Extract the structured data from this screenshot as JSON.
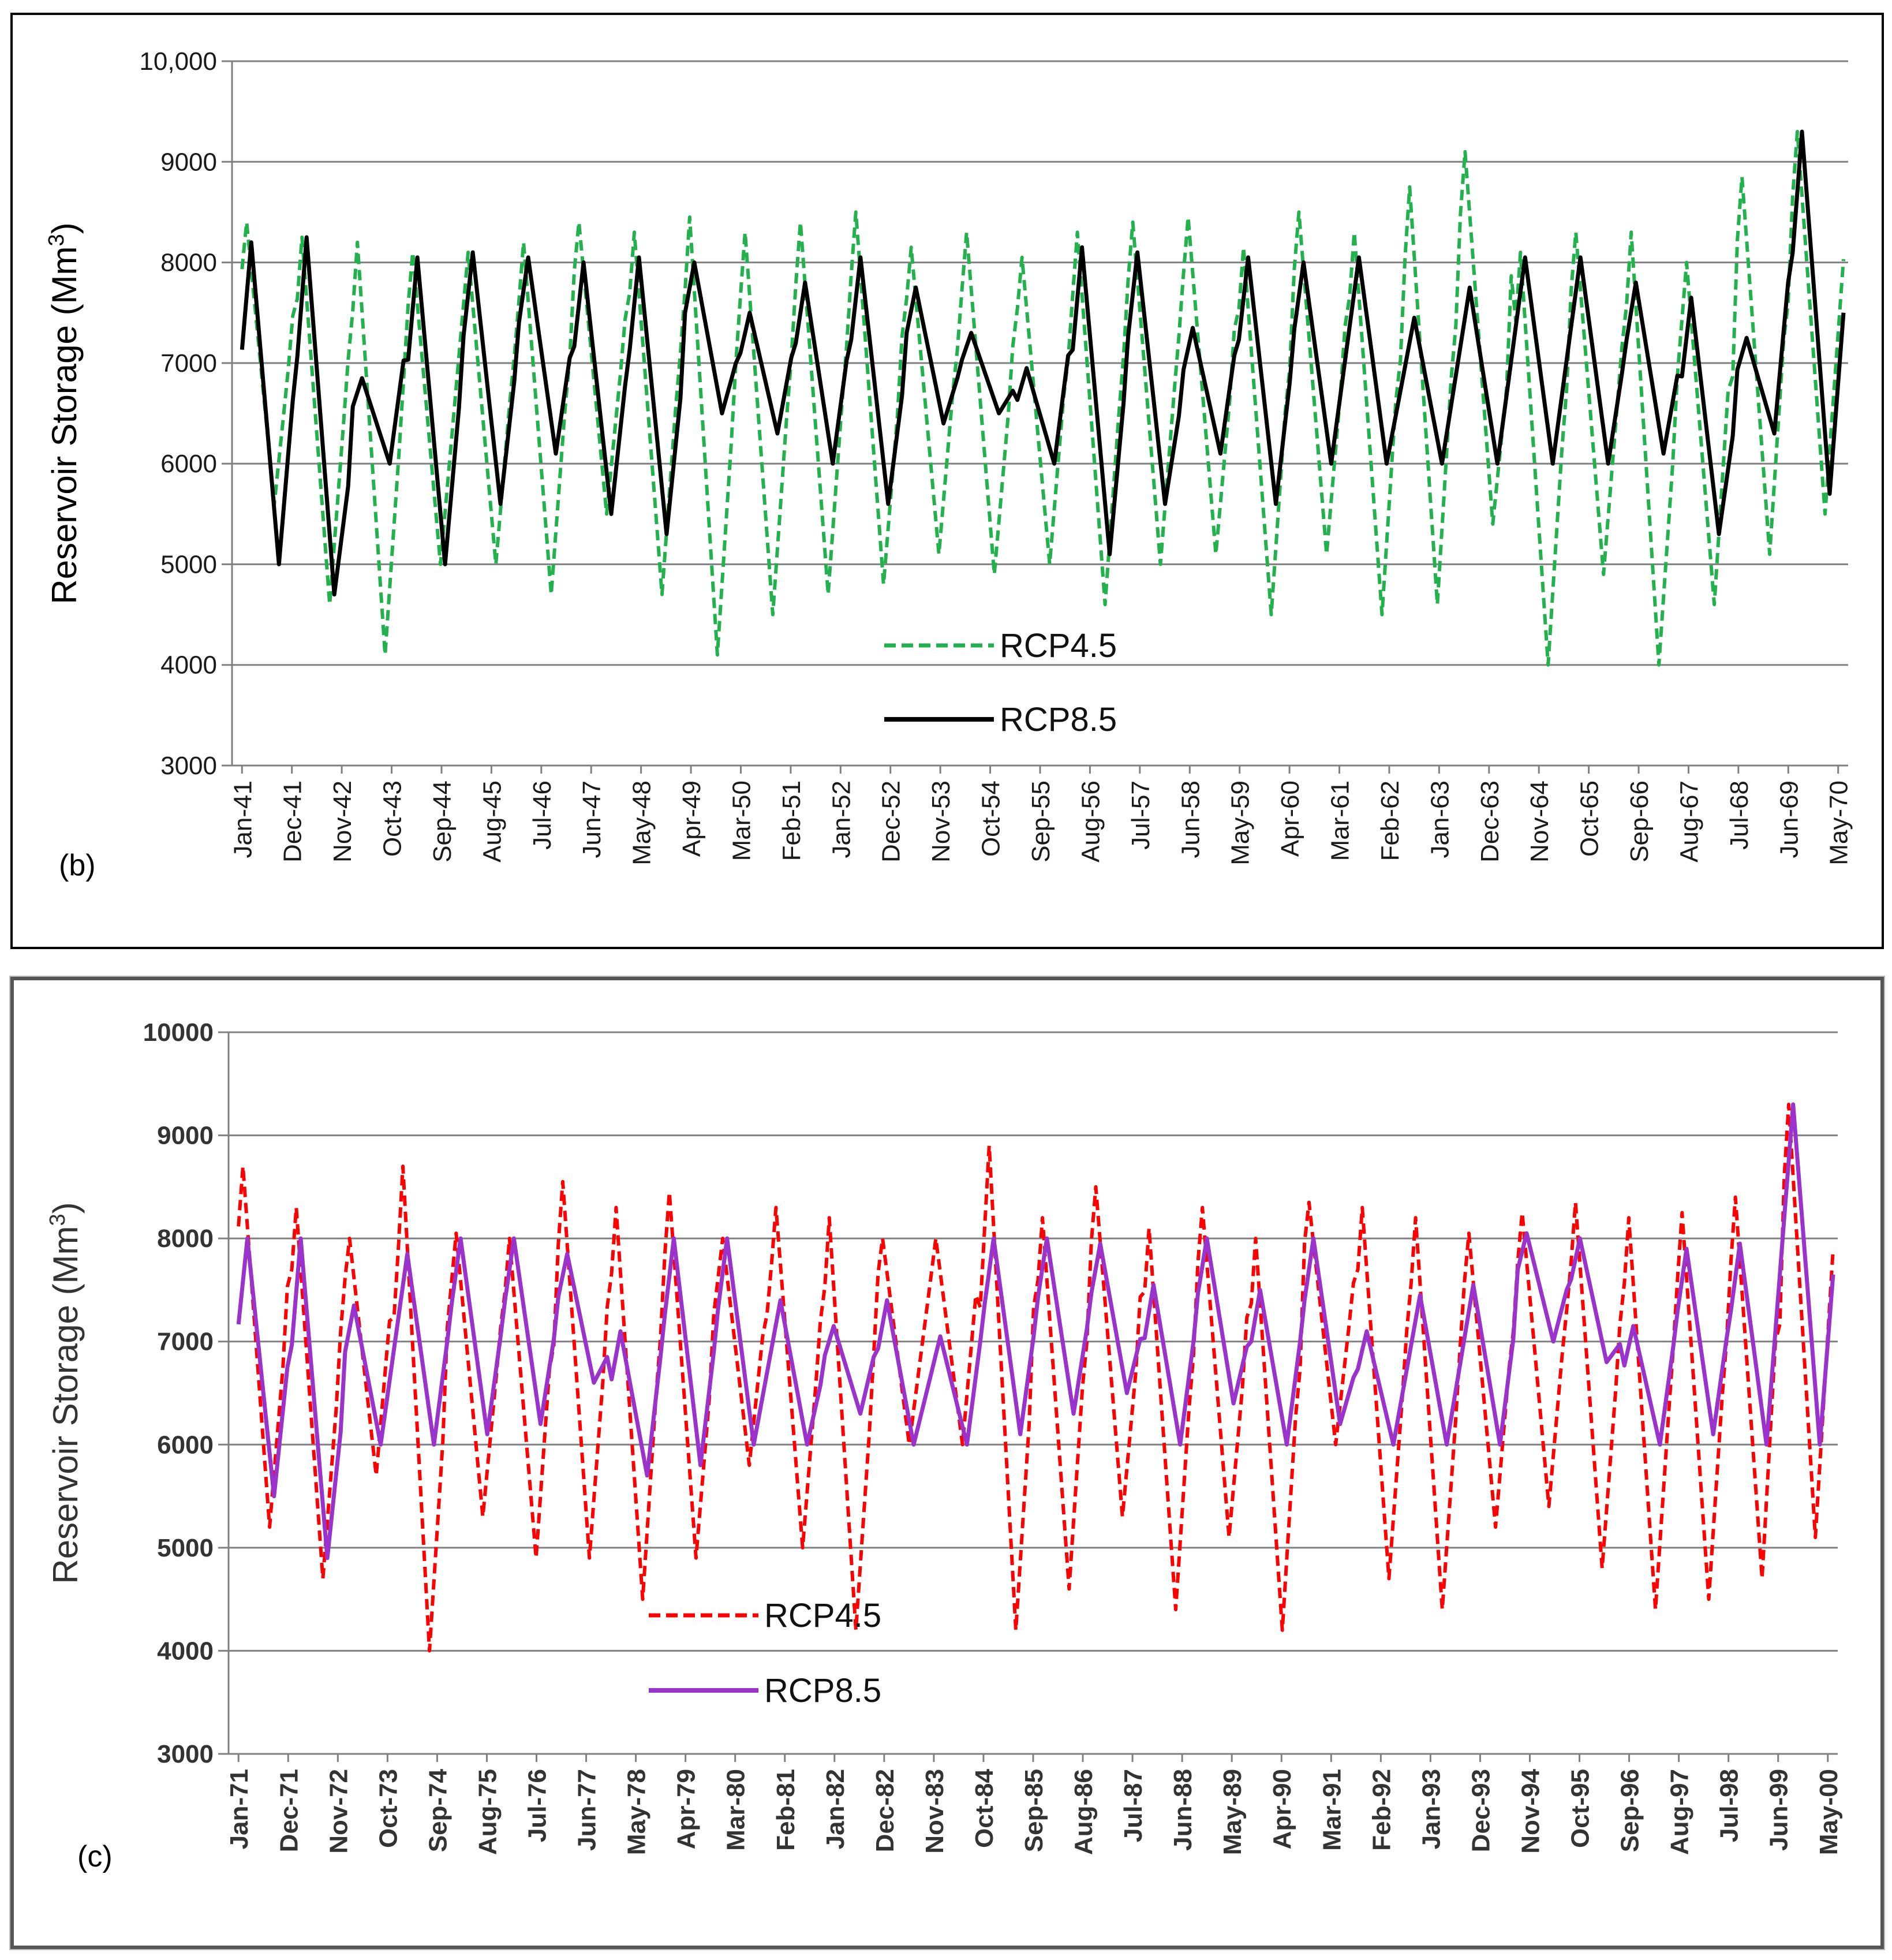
{
  "chart_data": [
    {
      "panel_label": "(b)",
      "type": "line",
      "ylabel": "Reservoir  Storage (Mm",
      "ylabel_sup": "3",
      "ylabel_end": ")",
      "ylim": [
        3000,
        10000
      ],
      "yticks": [
        "3000",
        "4000",
        "5000",
        "6000",
        "7000",
        "8000",
        "9000",
        "10,000"
      ],
      "ytick_values": [
        3000,
        4000,
        5000,
        6000,
        7000,
        8000,
        9000,
        10000
      ],
      "grid": true,
      "legend_position": "bottom-center",
      "x_tick_labels": [
        "Jan-41",
        "Dec-41",
        "Nov-42",
        "Oct-43",
        "Sep-44",
        "Aug-45",
        "Jul-46",
        "Jun-47",
        "May-48",
        "Apr-49",
        "Mar-50",
        "Feb-51",
        "Jan-52",
        "Dec-52",
        "Nov-53",
        "Oct-54",
        "Sep-55",
        "Aug-56",
        "Jul-57",
        "Jun-58",
        "May-59",
        "Apr-60",
        "Mar-61",
        "Feb-62",
        "Jan-63",
        "Dec-63",
        "Nov-64",
        "Oct-65",
        "Sep-66",
        "Aug-67",
        "Jul-68",
        "Jun-69",
        "May-70"
      ],
      "series": [
        {
          "name": "RCP4.5",
          "color": "#22b14c",
          "style": "dashed",
          "cycle_peaks": [
            8400,
            8250,
            8200,
            8100,
            8100,
            8200,
            8400,
            8300,
            8450,
            8300,
            8400,
            8500,
            8150,
            8300,
            8050,
            8300,
            8400,
            8450,
            8150,
            8500,
            8300,
            8750,
            9100,
            8100,
            8300,
            8300,
            8000,
            8850,
            9300
          ],
          "cycle_troughs": [
            5600,
            4600,
            4100,
            5000,
            5000,
            4700,
            5500,
            4700,
            4100,
            4500,
            4700,
            4800,
            5100,
            4900,
            5000,
            4600,
            5000,
            5100,
            4500,
            5100,
            4500,
            4600,
            5400,
            4000,
            4900,
            4000,
            4600,
            5100,
            5500
          ]
        },
        {
          "name": "RCP8.5",
          "color": "#000000",
          "style": "solid",
          "cycle_peaks": [
            8200,
            8250,
            6850,
            8050,
            8100,
            8050,
            8000,
            8050,
            8000,
            7500,
            7800,
            8050,
            7750,
            7300,
            6950,
            8150,
            8100,
            7350,
            8050,
            8000,
            8050,
            7450,
            7750,
            8050,
            8050,
            7800,
            7650,
            7250,
            9300
          ],
          "cycle_troughs": [
            5000,
            4700,
            6000,
            5000,
            5600,
            6100,
            5500,
            5300,
            6500,
            6300,
            6000,
            5600,
            6400,
            6500,
            6000,
            5100,
            5600,
            6100,
            5600,
            6000,
            6000,
            6000,
            6000,
            6000,
            6000,
            6100,
            5300,
            6300,
            5700
          ]
        }
      ]
    },
    {
      "panel_label": "(c)",
      "type": "line",
      "ylabel": "Reservoir Storage (Mm",
      "ylabel_sup": "3",
      "ylabel_end": ")",
      "ylim": [
        3000,
        10000
      ],
      "yticks": [
        "3000",
        "4000",
        "5000",
        "6000",
        "7000",
        "8000",
        "9000",
        "10000"
      ],
      "ytick_values": [
        3000,
        4000,
        5000,
        6000,
        7000,
        8000,
        9000,
        10000
      ],
      "grid": true,
      "legend_position": "bottom-left",
      "x_tick_labels": [
        "Jan-71",
        "Dec-71",
        "Nov-72",
        "Oct-73",
        "Sep-74",
        "Aug-75",
        "Jul-76",
        "Jun-77",
        "May-78",
        "Apr-79",
        "Mar-80",
        "Feb-81",
        "Jan-82",
        "Dec-82",
        "Nov-83",
        "Oct-84",
        "Sep-85",
        "Aug-86",
        "Jul-87",
        "Jun-88",
        "May-89",
        "Apr-90",
        "Mar-91",
        "Feb-92",
        "Jan-93",
        "Dec-93",
        "Nov-94",
        "Oct-95",
        "Sep-96",
        "Aug-97",
        "Jul-98",
        "Jun-99",
        "May-00"
      ],
      "series": [
        {
          "name": "RCP4.5",
          "color": "#ff0000",
          "style": "dashed",
          "cycle_peaks": [
            8700,
            8300,
            8000,
            8700,
            8050,
            8000,
            8550,
            8300,
            8450,
            8000,
            8300,
            8200,
            8000,
            8000,
            8900,
            8200,
            8500,
            8100,
            8300,
            8000,
            8350,
            8300,
            8200,
            8050,
            8250,
            8350,
            8200,
            8250,
            8400,
            9300
          ],
          "cycle_troughs": [
            5200,
            4700,
            5700,
            4000,
            5300,
            4900,
            4900,
            4500,
            4900,
            5800,
            5000,
            4200,
            6000,
            6000,
            4200,
            4600,
            5300,
            4400,
            5100,
            4200,
            6000,
            4700,
            4400,
            5200,
            5400,
            4800,
            4400,
            4500,
            4700,
            5100
          ]
        },
        {
          "name": "RCP8.5",
          "color": "#9933cc",
          "style": "solid",
          "cycle_peaks": [
            8000,
            8000,
            7350,
            7850,
            8000,
            8000,
            7850,
            7100,
            8000,
            8000,
            7400,
            7150,
            7400,
            7050,
            8000,
            8000,
            7950,
            7550,
            8000,
            7500,
            8000,
            7100,
            7450,
            7550,
            8050,
            8000,
            7150,
            7900,
            7950,
            9300
          ],
          "cycle_troughs": [
            5500,
            4900,
            6000,
            6000,
            6100,
            6200,
            6600,
            5700,
            5800,
            6000,
            6000,
            6300,
            6000,
            6000,
            6100,
            6300,
            6500,
            6000,
            6400,
            6000,
            6200,
            6000,
            6000,
            6000,
            7000,
            6800,
            6000,
            6100,
            6000,
            6000
          ]
        }
      ]
    }
  ]
}
